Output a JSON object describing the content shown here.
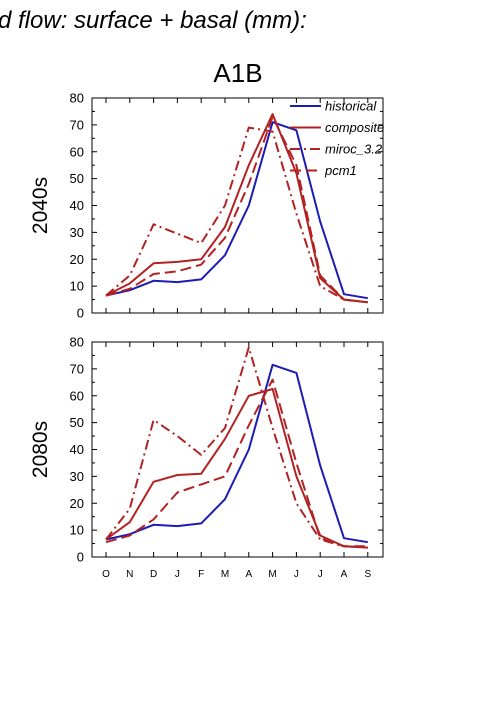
{
  "page_title": "d flow: surface + basal (mm):",
  "chart_data": {
    "type": "line",
    "title": "A1B",
    "categories": [
      "O",
      "N",
      "D",
      "J",
      "F",
      "M",
      "A",
      "M",
      "J",
      "J",
      "A",
      "S"
    ],
    "ylim": [
      0,
      80
    ],
    "yticks": [
      0,
      10,
      20,
      30,
      40,
      50,
      60,
      70,
      80
    ],
    "legend_position": "top-right",
    "colors": {
      "historical": "#1c1cb4",
      "projection": "#b22222"
    },
    "panels": [
      {
        "ylabel": "2040s",
        "show_legend": true,
        "series": [
          {
            "name": "historical",
            "style": "solid",
            "color": "#1c1cb4",
            "values": [
              6.5,
              8.5,
              12,
              11.5,
              12.5,
              21.5,
              40,
              71,
              68,
              34,
              7,
              5.5
            ]
          },
          {
            "name": "composite",
            "style": "solid",
            "color": "#b22222",
            "values": [
              6.5,
              11,
              18.5,
              19,
              20,
              32,
              55,
              74,
              52,
              13,
              5,
              4
            ]
          },
          {
            "name": "miroc_3.2",
            "style": "dashdot",
            "color": "#b22222",
            "values": [
              6.5,
              14,
              33,
              29.5,
              26,
              40,
              69,
              67.5,
              37,
              10,
              5,
              4
            ]
          },
          {
            "name": "pcm1",
            "style": "dashed",
            "color": "#b22222",
            "values": [
              6.5,
              9,
              14.5,
              15.5,
              18,
              28,
              48,
              73,
              55,
              14,
              5,
              4
            ]
          }
        ]
      },
      {
        "ylabel": "2080s",
        "show_legend": false,
        "series": [
          {
            "name": "historical",
            "style": "solid",
            "color": "#1c1cb4",
            "values": [
              6.5,
              8.5,
              12,
              11.5,
              12.5,
              21.5,
              40,
              71.5,
              68.5,
              34,
              7,
              5.5
            ]
          },
          {
            "name": "composite",
            "style": "solid",
            "color": "#b22222",
            "values": [
              6.5,
              13,
              28,
              30.5,
              31,
              44,
              60,
              62.5,
              30,
              8,
              4,
              3.5
            ]
          },
          {
            "name": "miroc_3.2",
            "style": "dashdot",
            "color": "#b22222",
            "values": [
              6.5,
              18,
              51,
              45,
              38,
              48,
              78,
              48,
              20,
              6.5,
              4,
              3.5
            ]
          },
          {
            "name": "pcm1",
            "style": "dashed",
            "color": "#b22222",
            "values": [
              5.5,
              8,
              14,
              24,
              27,
              30,
              49,
              66,
              35,
              7,
              4,
              4
            ]
          }
        ]
      }
    ]
  }
}
